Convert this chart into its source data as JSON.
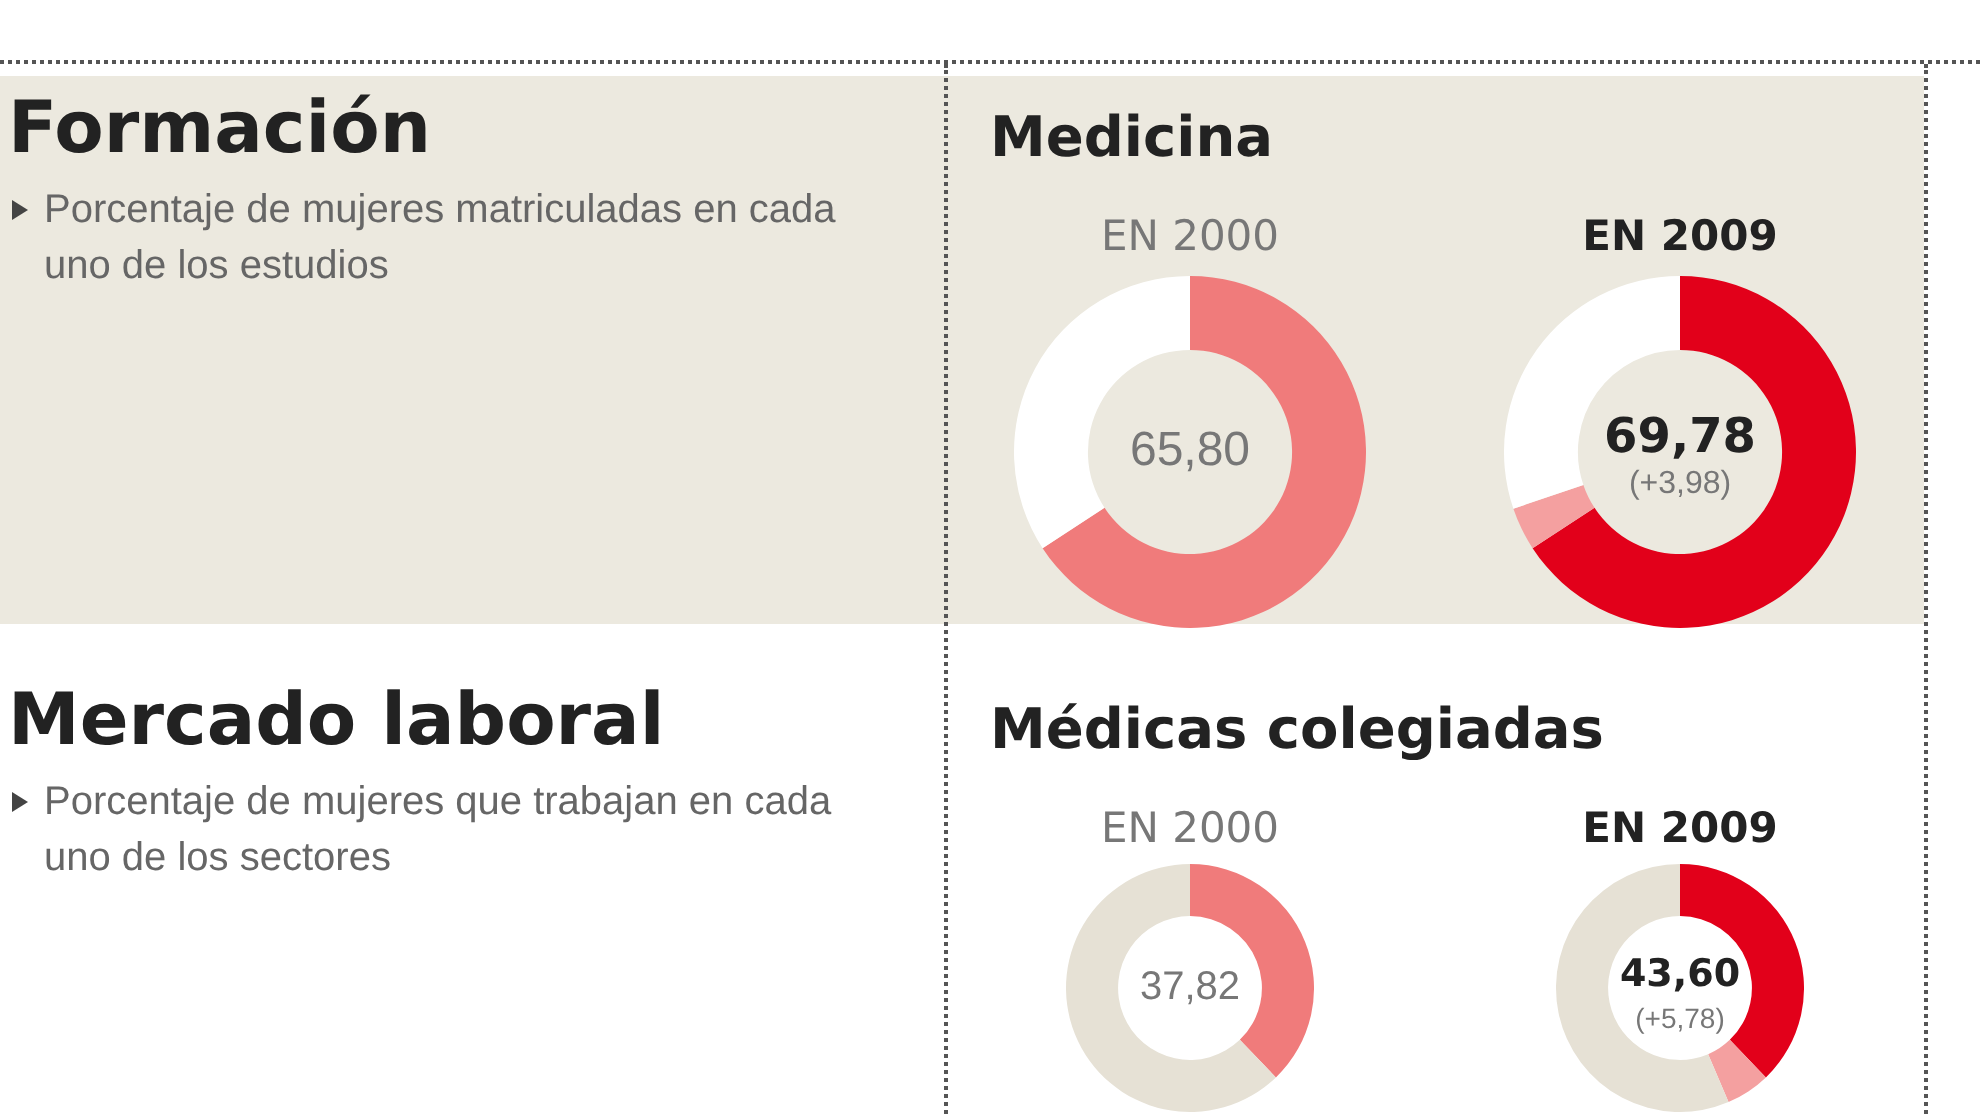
{
  "chart_data": [
    {
      "type": "other",
      "title": "Formación",
      "subtitle": "Porcentaje de mujeres matriculadas en cada uno de los estudios"
    },
    {
      "type": "donut",
      "title": "Medicina",
      "subtitle": "EN 2000",
      "categories": [
        null,
        null
      ],
      "values": [
        65.8,
        34.2
      ],
      "colors": [
        "#f07b7b",
        "#ffffff"
      ],
      "annotations": [
        "65,80"
      ]
    },
    {
      "type": "donut",
      "subtitle": "EN 2009",
      "categories": [
        null,
        null,
        null
      ],
      "values": [
        65.8,
        3.98,
        30.22
      ],
      "colors": [
        "#e2001a",
        "#f4a0a0",
        "#ffffff"
      ],
      "annotations": [
        "69,78",
        "(+3,98)"
      ]
    },
    {
      "type": "other",
      "title": "Mercado laboral",
      "subtitle": "Porcentaje de mujeres que trabajan en cada uno de los sectores"
    },
    {
      "type": "donut",
      "title": "Médicas colegiadas",
      "subtitle": "EN 2000",
      "categories": [
        null,
        null
      ],
      "values": [
        37.82,
        62.18
      ],
      "colors": [
        "#f07b7b",
        "#e6e1d5"
      ],
      "annotations": [
        "37,82"
      ]
    },
    {
      "type": "donut",
      "subtitle": "EN 2009",
      "categories": [
        null,
        null,
        null
      ],
      "values": [
        37.82,
        5.78,
        56.4
      ],
      "colors": [
        "#e2001a",
        "#f4a0a0",
        "#e6e1d5"
      ],
      "annotations": [
        "43,60",
        "(+5,78)"
      ]
    }
  ]
}
